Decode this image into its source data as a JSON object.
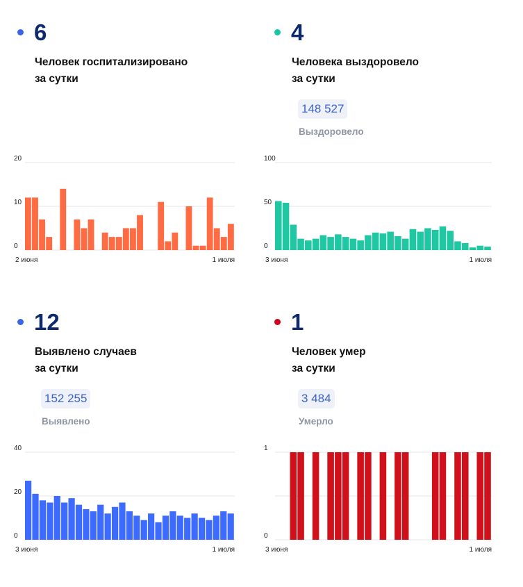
{
  "panels": [
    {
      "value": "6",
      "line1": "Человек госпитализировано",
      "line2": "за сутки",
      "total": "",
      "total_label": "",
      "color": "#3b63e6",
      "chart_data": {
        "type": "bar",
        "color": "#ff6b43",
        "ylim": [
          0,
          20
        ],
        "yticks": [
          "20",
          "10",
          "0"
        ],
        "x_start_label": "2 июня",
        "x_end_label": "1 июля",
        "values": [
          12,
          12,
          7,
          3,
          0,
          14,
          0,
          7,
          5,
          7,
          0,
          4,
          3,
          3,
          5,
          5,
          8,
          0,
          0,
          11,
          2,
          4,
          0,
          10,
          1,
          1,
          12,
          5,
          3,
          6
        ]
      }
    },
    {
      "value": "4",
      "line1": "Человека выздоровело",
      "line2": "за сутки",
      "total": "148 527",
      "total_label": "Выздоровело",
      "color": "#17c6a3",
      "chart_data": {
        "type": "bar",
        "color": "#1fc7a2",
        "ylim": [
          0,
          100
        ],
        "yticks": [
          "100",
          "50",
          "0"
        ],
        "x_start_label": "3 июня",
        "x_end_label": "1 июля",
        "values": [
          56,
          54,
          29,
          13,
          11,
          13,
          17,
          15,
          18,
          15,
          13,
          11,
          17,
          20,
          19,
          21,
          16,
          13,
          24,
          21,
          25,
          23,
          27,
          22,
          10,
          8,
          3,
          5,
          4
        ]
      }
    },
    {
      "value": "12",
      "line1": "Выявлено случаев",
      "line2": "за сутки",
      "total": "152 255",
      "total_label": "Выявлено",
      "color": "#3b63e6",
      "chart_data": {
        "type": "bar",
        "color": "#3d6bff",
        "ylim": [
          0,
          40
        ],
        "yticks": [
          "40",
          "20",
          "0"
        ],
        "x_start_label": "3 июня",
        "x_end_label": "1 июля",
        "values": [
          27,
          21,
          18,
          17,
          20,
          17,
          19,
          16,
          14,
          13,
          16,
          12,
          15,
          17,
          13,
          11,
          9,
          12,
          8,
          11,
          13,
          11,
          10,
          12,
          10,
          9,
          11,
          13,
          12
        ]
      }
    },
    {
      "value": "1",
      "line1": "Человек умер",
      "line2": "за сутки",
      "total": "3 484",
      "total_label": "Умерло",
      "color": "#d0021b",
      "chart_data": {
        "type": "bar",
        "color": "#d0101a",
        "ylim": [
          0,
          1
        ],
        "yticks": [
          "1",
          "",
          "0"
        ],
        "x_start_label": "3 июня",
        "x_end_label": "1 июля",
        "values": [
          0,
          0,
          1,
          1,
          0,
          1,
          0,
          1,
          1,
          1,
          0,
          1,
          1,
          0,
          1,
          0,
          1,
          1,
          0,
          0,
          0,
          1,
          1,
          0,
          1,
          1,
          0,
          1,
          1
        ]
      }
    }
  ]
}
